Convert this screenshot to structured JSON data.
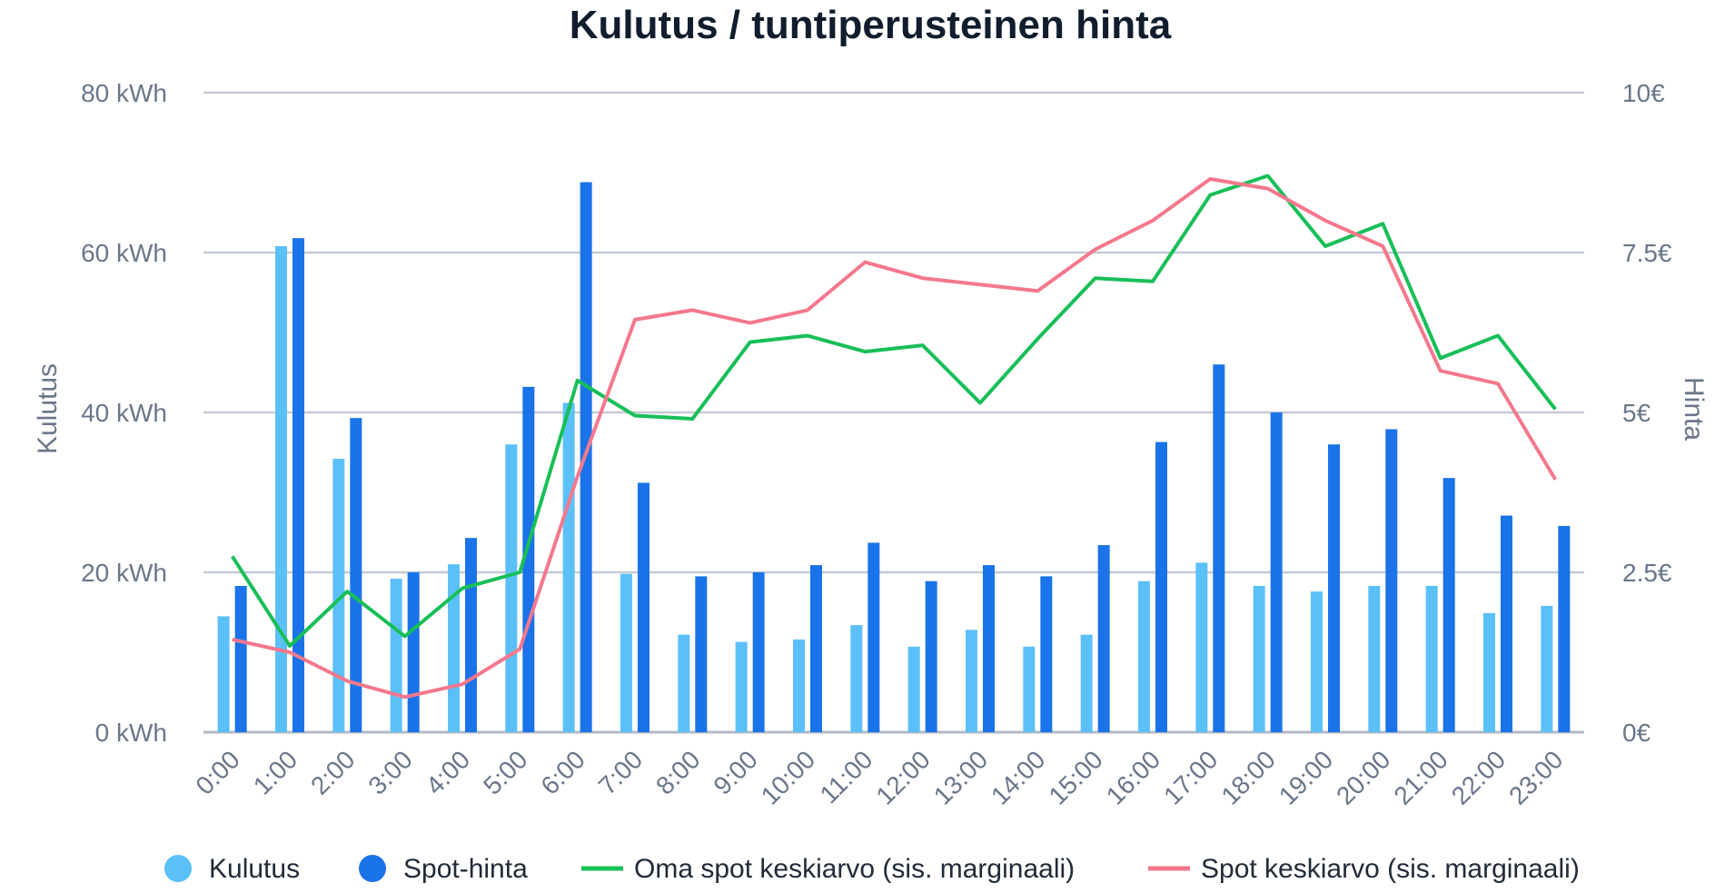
{
  "chart_data": {
    "type": "bar",
    "title": "Kulutus / tuntiperusteinen hinta",
    "ylabel": "Kulutus",
    "y2label": "Hinta",
    "ylim": [
      0,
      80
    ],
    "y2lim": [
      0,
      10
    ],
    "yticks": [
      "0 kWh",
      "20 kWh",
      "40 kWh",
      "60 kWh",
      "80 kWh"
    ],
    "y2ticks": [
      "0€",
      "2.5€",
      "5€",
      "7.5€",
      "10€"
    ],
    "categories": [
      "0:00",
      "1:00",
      "2:00",
      "3:00",
      "4:00",
      "5:00",
      "6:00",
      "7:00",
      "8:00",
      "9:00",
      "10:00",
      "11:00",
      "12:00",
      "13:00",
      "14:00",
      "15:00",
      "16:00",
      "17:00",
      "18:00",
      "19:00",
      "20:00",
      "21:00",
      "22:00",
      "23:00"
    ],
    "grid": true,
    "legend_position": "bottom",
    "series": [
      {
        "name": "Kulutus",
        "kind": "bar",
        "axis": "left",
        "color": "#5bc0f8",
        "values": [
          14.5,
          60.8,
          34.2,
          19.2,
          21.0,
          36.0,
          41.2,
          19.8,
          12.2,
          11.3,
          11.6,
          13.4,
          10.7,
          12.8,
          10.7,
          12.2,
          18.9,
          21.2,
          18.3,
          17.6,
          18.3,
          18.3,
          14.9,
          15.8
        ]
      },
      {
        "name": "Spot-hinta",
        "kind": "bar",
        "axis": "left",
        "color": "#1a73e8",
        "values": [
          18.3,
          61.8,
          39.3,
          20.0,
          24.3,
          43.2,
          68.8,
          31.2,
          19.5,
          20.0,
          20.9,
          23.7,
          18.9,
          20.9,
          19.5,
          23.4,
          36.3,
          46.0,
          40.0,
          36.0,
          37.9,
          31.8,
          27.1,
          25.8
        ]
      },
      {
        "name": "Oma spot keskiarvo (sis. marginaali)",
        "kind": "line",
        "axis": "right",
        "color": "#18bf58",
        "values": [
          2.75,
          1.35,
          2.2,
          1.5,
          2.25,
          2.5,
          5.5,
          4.95,
          4.9,
          6.1,
          6.2,
          5.95,
          6.05,
          5.15,
          6.15,
          7.1,
          7.05,
          8.4,
          8.7,
          7.6,
          7.95,
          5.85,
          6.2,
          5.05
        ]
      },
      {
        "name": "Spot keskiarvo (sis. marginaali)",
        "kind": "line",
        "axis": "right",
        "color": "#f4788d",
        "values": [
          1.45,
          1.25,
          0.8,
          0.55,
          0.75,
          1.3,
          4.0,
          6.45,
          6.6,
          6.4,
          6.6,
          7.35,
          7.1,
          7.0,
          6.9,
          7.55,
          8.0,
          8.65,
          8.5,
          8.0,
          7.6,
          5.65,
          5.45,
          3.95
        ]
      }
    ]
  }
}
